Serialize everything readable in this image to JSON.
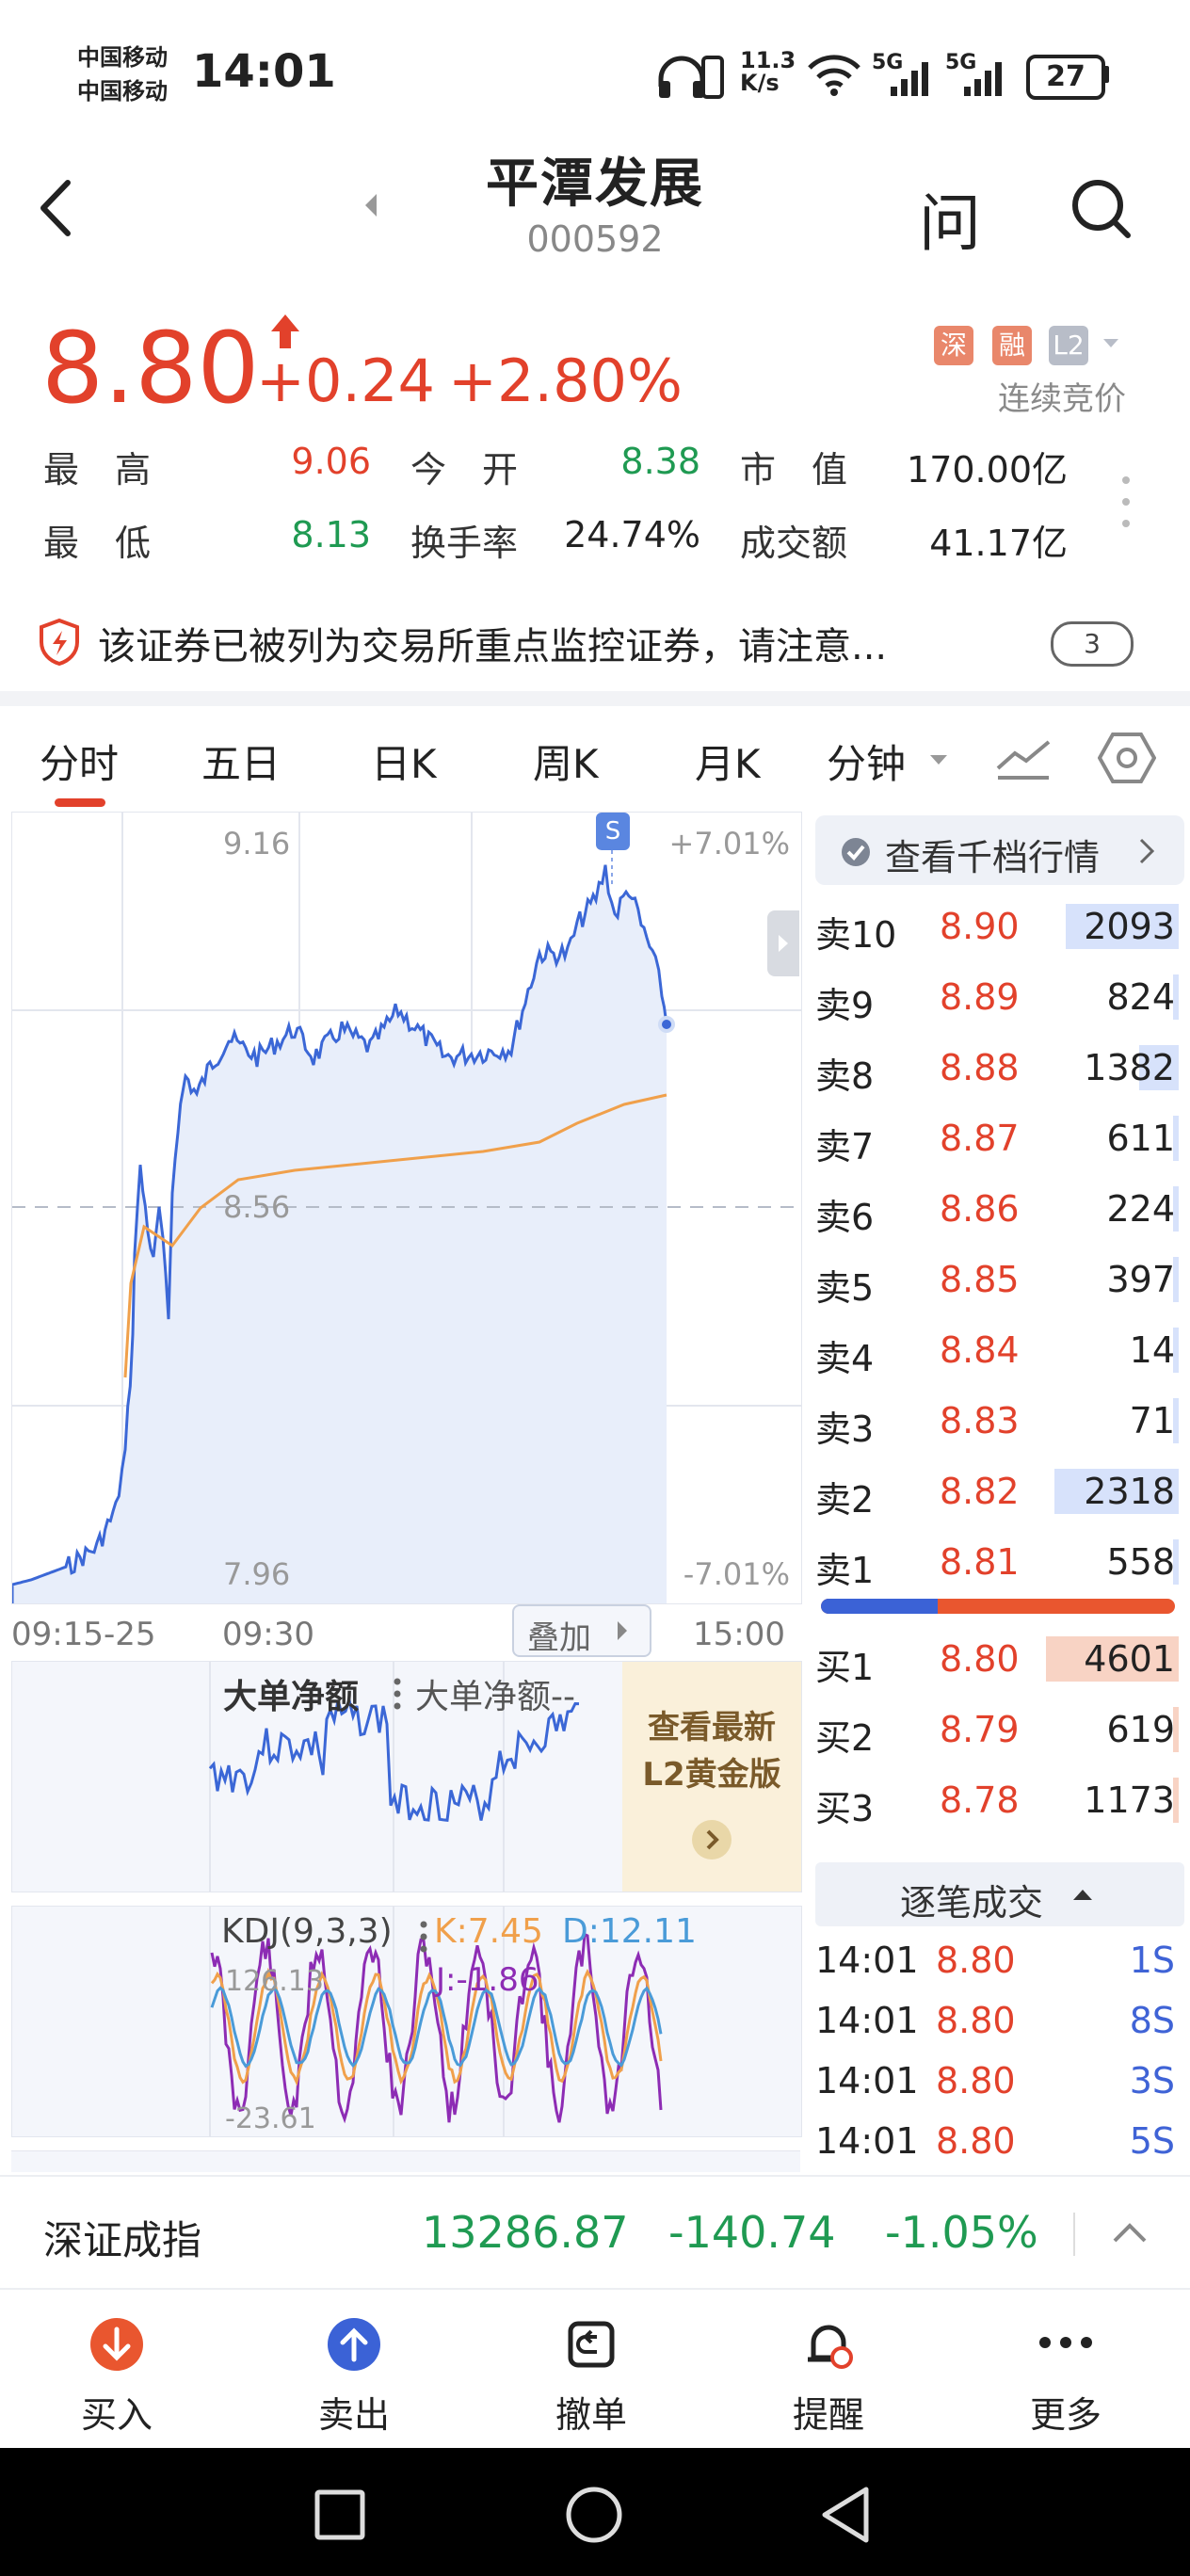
{
  "status_bar": {
    "carrier1": "中国移动",
    "carrier2": "中国移动",
    "time": "14:01",
    "net_speed_top": "11.3",
    "net_speed_bottom": "K/s",
    "signal1": "5G",
    "signal2": "5G",
    "battery": "27"
  },
  "header": {
    "title": "平潭发展",
    "code": "000592",
    "ask_icon": "问"
  },
  "quote": {
    "price": "8.80",
    "change": "+0.24",
    "change_pct": "+2.80%",
    "tag_shen": "深",
    "tag_rong": "融",
    "tag_l2": "L2",
    "auction": "连续竞价",
    "stats": {
      "high_label": "最　高",
      "high": "9.06",
      "open_label": "今　开",
      "open": "8.38",
      "mcap_label": "市　值",
      "mcap": "170.00亿",
      "low_label": "最　低",
      "low": "8.13",
      "turnover_label": "换手率",
      "turnover": "24.74%",
      "amount_label": "成交额",
      "amount": "41.17亿"
    }
  },
  "notice": {
    "text": "该证券已被列为交易所重点监控证券，请注意...",
    "count": "3"
  },
  "tabs": [
    "分时",
    "五日",
    "日K",
    "周K",
    "月K",
    "分钟"
  ],
  "chart": {
    "y_top": "9.16",
    "y_mid": "8.56",
    "y_bottom": "7.96",
    "pct_top": "+7.01%",
    "pct_bottom": "-7.01%",
    "time_start": "09:15-25",
    "time_open": "09:30",
    "time_end": "15:00",
    "overlay_btn": "叠加",
    "marker": "S",
    "colors": {
      "price": "#3b67d6",
      "avg": "#f0a04b"
    }
  },
  "big_order": {
    "title": "大单净额",
    "subtitle": "大单净额--",
    "promo_line1": "查看最新",
    "promo_line2": "L2黄金版"
  },
  "kdj": {
    "title": "KDJ(9,3,3)",
    "k": "K:7.45",
    "d": "D:12.11",
    "j": "J:-1.86",
    "upper": "126.13",
    "lower": "-23.61"
  },
  "order_book": {
    "view_btn": "查看千档行情",
    "asks": [
      {
        "label": "卖10",
        "price": "8.90",
        "vol": "2093",
        "bar": 0.4
      },
      {
        "label": "卖9",
        "price": "8.89",
        "vol": "824",
        "bar": 0.02
      },
      {
        "label": "卖8",
        "price": "8.88",
        "vol": "1382",
        "bar": 0.14
      },
      {
        "label": "卖7",
        "price": "8.87",
        "vol": "611",
        "bar": 0.02
      },
      {
        "label": "卖6",
        "price": "8.86",
        "vol": "224",
        "bar": 0.01
      },
      {
        "label": "卖5",
        "price": "8.85",
        "vol": "397",
        "bar": 0.02
      },
      {
        "label": "卖4",
        "price": "8.84",
        "vol": "14",
        "bar": 0.0
      },
      {
        "label": "卖3",
        "price": "8.83",
        "vol": "71",
        "bar": 0.01
      },
      {
        "label": "卖2",
        "price": "8.82",
        "vol": "2318",
        "bar": 0.44
      },
      {
        "label": "卖1",
        "price": "8.81",
        "vol": "558",
        "bar": 0.02
      }
    ],
    "bids": [
      {
        "label": "买1",
        "price": "8.80",
        "vol": "4601",
        "bar": 0.47
      },
      {
        "label": "买2",
        "price": "8.79",
        "vol": "619",
        "bar": 0.02
      },
      {
        "label": "买3",
        "price": "8.78",
        "vol": "1173",
        "bar": 0.02
      }
    ],
    "ticks_title": "逐笔成交",
    "ticks": [
      {
        "time": "14:01",
        "price": "8.80",
        "vol": "1S"
      },
      {
        "time": "14:01",
        "price": "8.80",
        "vol": "8S"
      },
      {
        "time": "14:01",
        "price": "8.80",
        "vol": "3S"
      },
      {
        "time": "14:01",
        "price": "8.80",
        "vol": "5S"
      }
    ]
  },
  "index_bar": {
    "name": "深证成指",
    "value": "13286.87",
    "change": "-140.74",
    "pct": "-1.05%"
  },
  "bottom_nav": {
    "buy": "买入",
    "sell": "卖出",
    "cancel": "撤单",
    "alert": "提醒",
    "more": "更多"
  }
}
